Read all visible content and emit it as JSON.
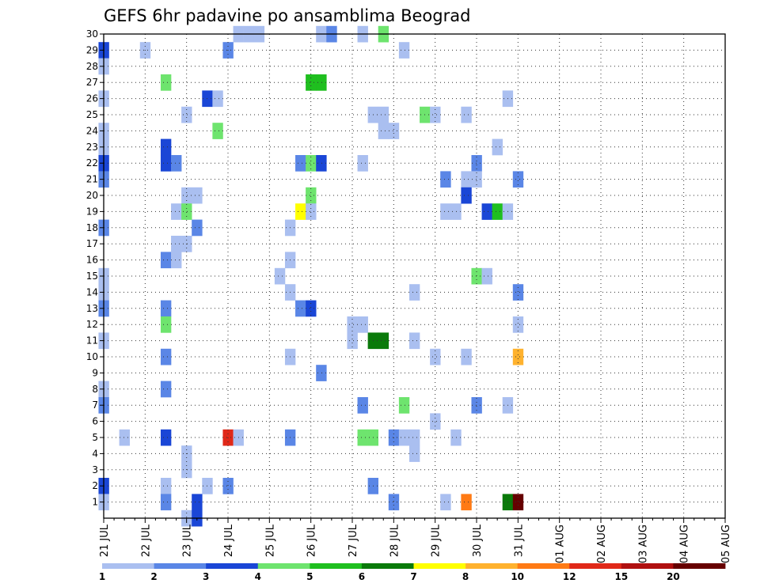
{
  "chart_data": {
    "type": "heatmap",
    "title": "GEFS 6hr padavine po ansamblima Beograd",
    "xlabel": "",
    "ylabel": "",
    "ylim": [
      0,
      30
    ],
    "y_ticks": [
      1,
      2,
      3,
      4,
      5,
      6,
      7,
      8,
      9,
      10,
      11,
      12,
      13,
      14,
      15,
      16,
      17,
      18,
      19,
      20,
      21,
      22,
      23,
      24,
      25,
      26,
      27,
      28,
      29,
      30
    ],
    "x_ticks": [
      "21 JUL",
      "22 JUL",
      "23 JUL",
      "24 JUL",
      "25 JUL",
      "26 JUL",
      "27 JUL",
      "28 JUL",
      "29 JUL",
      "30 JUL",
      "31 JUL",
      "01 AUG",
      "02 AUG",
      "03 AUG",
      "04 AUG",
      "05 AUG"
    ],
    "x_unit": "6hr steps from 21 JUL",
    "grid": true,
    "colorbar": {
      "labels": [
        "1",
        "2",
        "3",
        "4",
        "5",
        "6",
        "7",
        "8",
        "10",
        "12",
        "15",
        "20"
      ],
      "colors": [
        "#aabff0",
        "#5a86e6",
        "#1a46d6",
        "#6ee46e",
        "#1fbf1f",
        "#0a7a0a",
        "#ffff00",
        "#ffb22e",
        "#ff7a14",
        "#e02818",
        "#b01010",
        "#660000"
      ]
    },
    "cells": [
      {
        "t": 0,
        "m": 29,
        "v": 3
      },
      {
        "t": 0,
        "m": 28,
        "v": 1
      },
      {
        "t": 0,
        "m": 26,
        "v": 1
      },
      {
        "t": 0,
        "m": 24,
        "v": 1
      },
      {
        "t": 0,
        "m": 23,
        "v": 1
      },
      {
        "t": 0,
        "m": 22,
        "v": 3
      },
      {
        "t": 0,
        "m": 21,
        "v": 2
      },
      {
        "t": 0,
        "m": 18,
        "v": 2
      },
      {
        "t": 0,
        "m": 15,
        "v": 1
      },
      {
        "t": 0,
        "m": 14,
        "v": 1
      },
      {
        "t": 0,
        "m": 13,
        "v": 2
      },
      {
        "t": 0,
        "m": 11,
        "v": 1
      },
      {
        "t": 0,
        "m": 8,
        "v": 1
      },
      {
        "t": 0,
        "m": 7,
        "v": 2
      },
      {
        "t": 0,
        "m": 2,
        "v": 3
      },
      {
        "t": 0,
        "m": 1,
        "v": 1
      },
      {
        "t": 2,
        "m": 5,
        "v": 1
      },
      {
        "t": 4,
        "m": 29,
        "v": 1
      },
      {
        "t": 6,
        "m": 27,
        "v": 4
      },
      {
        "t": 6,
        "m": 23,
        "v": 3
      },
      {
        "t": 6,
        "m": 22,
        "v": 3
      },
      {
        "t": 6,
        "m": 16,
        "v": 2
      },
      {
        "t": 6,
        "m": 13,
        "v": 2
      },
      {
        "t": 6,
        "m": 12,
        "v": 4
      },
      {
        "t": 6,
        "m": 10,
        "v": 2
      },
      {
        "t": 6,
        "m": 8,
        "v": 2
      },
      {
        "t": 6,
        "m": 5,
        "v": 3
      },
      {
        "t": 6,
        "m": 2,
        "v": 1
      },
      {
        "t": 6,
        "m": 1,
        "v": 2
      },
      {
        "t": 7,
        "m": 22,
        "v": 2
      },
      {
        "t": 7,
        "m": 19,
        "v": 1
      },
      {
        "t": 7,
        "m": 17,
        "v": 1
      },
      {
        "t": 7,
        "m": 16,
        "v": 1
      },
      {
        "t": 8,
        "m": 25,
        "v": 1
      },
      {
        "t": 8,
        "m": 20,
        "v": 1
      },
      {
        "t": 8,
        "m": 19,
        "v": 4
      },
      {
        "t": 8,
        "m": 17,
        "v": 1
      },
      {
        "t": 8,
        "m": 4,
        "v": 1
      },
      {
        "t": 8,
        "m": 3,
        "v": 1
      },
      {
        "t": 8,
        "m": 0,
        "v": 1
      },
      {
        "t": 9,
        "m": 20,
        "v": 1
      },
      {
        "t": 9,
        "m": 18,
        "v": 2
      },
      {
        "t": 9,
        "m": 1,
        "v": 3
      },
      {
        "t": 9,
        "m": 0,
        "v": 3
      },
      {
        "t": 10,
        "m": 26,
        "v": 3
      },
      {
        "t": 10,
        "m": 2,
        "v": 1
      },
      {
        "t": 11,
        "m": 26,
        "v": 1
      },
      {
        "t": 11,
        "m": 24,
        "v": 4
      },
      {
        "t": 12,
        "m": 29,
        "v": 2
      },
      {
        "t": 12,
        "m": 5,
        "v": 12
      },
      {
        "t": 12,
        "m": 2,
        "v": 2
      },
      {
        "t": 13,
        "m": 30,
        "v": 1
      },
      {
        "t": 13,
        "m": 5,
        "v": 1
      },
      {
        "t": 14,
        "m": 30,
        "v": 1
      },
      {
        "t": 15,
        "m": 30,
        "v": 1
      },
      {
        "t": 17,
        "m": 15,
        "v": 1
      },
      {
        "t": 18,
        "m": 18,
        "v": 1
      },
      {
        "t": 18,
        "m": 16,
        "v": 1
      },
      {
        "t": 18,
        "m": 14,
        "v": 1
      },
      {
        "t": 18,
        "m": 10,
        "v": 1
      },
      {
        "t": 18,
        "m": 5,
        "v": 2
      },
      {
        "t": 19,
        "m": 22,
        "v": 2
      },
      {
        "t": 19,
        "m": 19,
        "v": 7
      },
      {
        "t": 19,
        "m": 13,
        "v": 2
      },
      {
        "t": 20,
        "m": 27,
        "v": 5
      },
      {
        "t": 20,
        "m": 22,
        "v": 4
      },
      {
        "t": 20,
        "m": 20,
        "v": 4
      },
      {
        "t": 20,
        "m": 19,
        "v": 1
      },
      {
        "t": 20,
        "m": 13,
        "v": 3
      },
      {
        "t": 21,
        "m": 30,
        "v": 1
      },
      {
        "t": 21,
        "m": 27,
        "v": 5
      },
      {
        "t": 21,
        "m": 22,
        "v": 3
      },
      {
        "t": 21,
        "m": 9,
        "v": 2
      },
      {
        "t": 22,
        "m": 30,
        "v": 2
      },
      {
        "t": 24,
        "m": 12,
        "v": 1
      },
      {
        "t": 24,
        "m": 11,
        "v": 1
      },
      {
        "t": 25,
        "m": 30,
        "v": 1
      },
      {
        "t": 25,
        "m": 22,
        "v": 1
      },
      {
        "t": 25,
        "m": 12,
        "v": 1
      },
      {
        "t": 25,
        "m": 7,
        "v": 2
      },
      {
        "t": 25,
        "m": 5,
        "v": 4
      },
      {
        "t": 26,
        "m": 25,
        "v": 1
      },
      {
        "t": 26,
        "m": 11,
        "v": 6
      },
      {
        "t": 26,
        "m": 5,
        "v": 4
      },
      {
        "t": 26,
        "m": 2,
        "v": 2
      },
      {
        "t": 27,
        "m": 30,
        "v": 4
      },
      {
        "t": 27,
        "m": 25,
        "v": 1
      },
      {
        "t": 27,
        "m": 24,
        "v": 1
      },
      {
        "t": 27,
        "m": 11,
        "v": 6
      },
      {
        "t": 28,
        "m": 24,
        "v": 1
      },
      {
        "t": 28,
        "m": 5,
        "v": 2
      },
      {
        "t": 28,
        "m": 1,
        "v": 2
      },
      {
        "t": 29,
        "m": 29,
        "v": 1
      },
      {
        "t": 29,
        "m": 7,
        "v": 4
      },
      {
        "t": 29,
        "m": 5,
        "v": 1
      },
      {
        "t": 30,
        "m": 14,
        "v": 1
      },
      {
        "t": 30,
        "m": 11,
        "v": 1
      },
      {
        "t": 30,
        "m": 5,
        "v": 1
      },
      {
        "t": 30,
        "m": 4,
        "v": 1
      },
      {
        "t": 31,
        "m": 25,
        "v": 4
      },
      {
        "t": 32,
        "m": 25,
        "v": 1
      },
      {
        "t": 32,
        "m": 10,
        "v": 1
      },
      {
        "t": 32,
        "m": 6,
        "v": 1
      },
      {
        "t": 33,
        "m": 21,
        "v": 2
      },
      {
        "t": 33,
        "m": 19,
        "v": 1
      },
      {
        "t": 33,
        "m": 1,
        "v": 1
      },
      {
        "t": 34,
        "m": 19,
        "v": 1
      },
      {
        "t": 34,
        "m": 5,
        "v": 1
      },
      {
        "t": 35,
        "m": 25,
        "v": 1
      },
      {
        "t": 35,
        "m": 21,
        "v": 1
      },
      {
        "t": 35,
        "m": 20,
        "v": 3
      },
      {
        "t": 35,
        "m": 10,
        "v": 1
      },
      {
        "t": 35,
        "m": 1,
        "v": 10
      },
      {
        "t": 36,
        "m": 22,
        "v": 2
      },
      {
        "t": 36,
        "m": 21,
        "v": 1
      },
      {
        "t": 36,
        "m": 15,
        "v": 4
      },
      {
        "t": 36,
        "m": 7,
        "v": 2
      },
      {
        "t": 37,
        "m": 19,
        "v": 3
      },
      {
        "t": 37,
        "m": 15,
        "v": 1
      },
      {
        "t": 38,
        "m": 23,
        "v": 1
      },
      {
        "t": 38,
        "m": 19,
        "v": 5
      },
      {
        "t": 39,
        "m": 26,
        "v": 1
      },
      {
        "t": 39,
        "m": 19,
        "v": 1
      },
      {
        "t": 39,
        "m": 7,
        "v": 1
      },
      {
        "t": 39,
        "m": 1,
        "v": 6
      },
      {
        "t": 40,
        "m": 21,
        "v": 2
      },
      {
        "t": 40,
        "m": 14,
        "v": 2
      },
      {
        "t": 40,
        "m": 12,
        "v": 1
      },
      {
        "t": 40,
        "m": 10,
        "v": 8
      },
      {
        "t": 40,
        "m": 1,
        "v": 20
      }
    ]
  }
}
